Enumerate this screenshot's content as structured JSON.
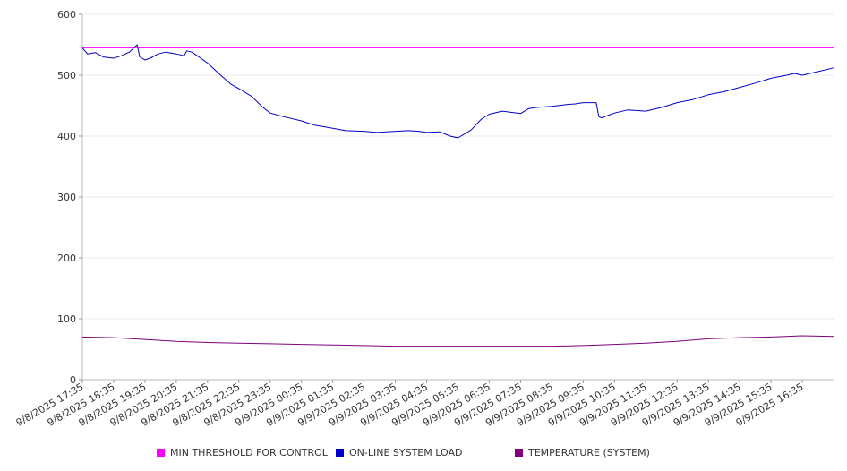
{
  "chart_data": {
    "type": "line",
    "ylim": [
      0,
      600
    ],
    "yticks": [
      "0",
      "100",
      "200",
      "300",
      "400",
      "500",
      "600"
    ],
    "x_tick_labels": [
      "9/8/2025 17:35",
      "9/8/2025 18:35",
      "9/8/2025 19:35",
      "9/8/2025 20:35",
      "9/8/2025 21:35",
      "9/8/2025 22:35",
      "9/8/2025 23:35",
      "9/9/2025 00:35",
      "9/9/2025 01:35",
      "9/9/2025 02:35",
      "9/9/2025 03:35",
      "9/9/2025 04:35",
      "9/9/2025 05:35",
      "9/9/2025 06:35",
      "9/9/2025 07:35",
      "9/9/2025 08:35",
      "9/9/2025 09:35",
      "9/9/2025 10:35",
      "9/9/2025 11:35",
      "9/9/2025 12:35",
      "9/9/2025 13:35",
      "9/9/2025 14:35",
      "9/9/2025 15:35",
      "9/9/2025 16:35"
    ],
    "x_range": [
      "9/8/2025 17:35",
      "9/9/2025 17:35"
    ],
    "grid": true,
    "legend_position": "bottom",
    "series": [
      {
        "name": "MIN THRESHOLD FOR CONTROL",
        "color": "#ff00ff",
        "x": [
          "9/8/2025 17:35",
          "9/9/2025 17:35"
        ],
        "values": [
          545,
          545
        ]
      },
      {
        "name": "ON-LINE SYSTEM LOAD",
        "color": "#0000cc",
        "x": [
          "9/8/2025 17:35",
          "9/8/2025 17:45",
          "9/8/2025 18:00",
          "9/8/2025 18:15",
          "9/8/2025 18:35",
          "9/8/2025 18:50",
          "9/8/2025 19:05",
          "9/8/2025 19:20",
          "9/8/2025 19:25",
          "9/8/2025 19:35",
          "9/8/2025 19:45",
          "9/8/2025 20:00",
          "9/8/2025 20:15",
          "9/8/2025 20:35",
          "9/8/2025 20:50",
          "9/8/2025 20:55",
          "9/8/2025 21:05",
          "9/8/2025 21:35",
          "9/8/2025 22:00",
          "9/8/2025 22:20",
          "9/8/2025 22:35",
          "9/8/2025 23:00",
          "9/8/2025 23:20",
          "9/8/2025 23:35",
          "9/9/2025 00:00",
          "9/9/2025 00:35",
          "9/9/2025 01:00",
          "9/9/2025 01:35",
          "9/9/2025 02:00",
          "9/9/2025 02:35",
          "9/9/2025 03:00",
          "9/9/2025 03:35",
          "9/9/2025 04:00",
          "9/9/2025 04:20",
          "9/9/2025 04:35",
          "9/9/2025 05:00",
          "9/9/2025 05:20",
          "9/9/2025 05:35",
          "9/9/2025 06:00",
          "9/9/2025 06:20",
          "9/9/2025 06:35",
          "9/9/2025 07:00",
          "9/9/2025 07:35",
          "9/9/2025 07:50",
          "9/9/2025 08:05",
          "9/9/2025 08:35",
          "9/9/2025 09:05",
          "9/9/2025 09:20",
          "9/9/2025 09:35",
          "9/9/2025 10:00",
          "9/9/2025 10:05",
          "9/9/2025 10:10",
          "9/9/2025 10:35",
          "9/9/2025 11:00",
          "9/9/2025 11:35",
          "9/9/2025 12:05",
          "9/9/2025 12:35",
          "9/9/2025 13:05",
          "9/9/2025 13:35",
          "9/9/2025 14:05",
          "9/9/2025 14:35",
          "9/9/2025 15:05",
          "9/9/2025 15:35",
          "9/9/2025 16:05",
          "9/9/2025 16:20",
          "9/9/2025 16:35",
          "9/9/2025 17:00",
          "9/9/2025 17:35"
        ],
        "values": [
          545,
          535,
          537,
          530,
          528,
          532,
          538,
          550,
          530,
          525,
          528,
          535,
          538,
          535,
          532,
          540,
          538,
          520,
          500,
          485,
          478,
          465,
          448,
          438,
          432,
          425,
          418,
          413,
          409,
          408,
          406,
          408,
          409,
          408,
          406,
          407,
          400,
          397,
          410,
          428,
          436,
          441,
          437,
          445,
          447,
          449,
          452,
          453,
          455,
          455,
          432,
          430,
          438,
          443,
          441,
          447,
          455,
          460,
          468,
          473,
          480,
          487,
          495,
          500,
          503,
          500,
          505,
          512
        ]
      },
      {
        "name": "TEMPERATURE (SYSTEM)",
        "color": "#800080",
        "x": [
          "9/8/2025 17:35",
          "9/8/2025 18:35",
          "9/8/2025 19:35",
          "9/8/2025 20:35",
          "9/8/2025 21:35",
          "9/8/2025 22:35",
          "9/8/2025 23:35",
          "9/9/2025 00:35",
          "9/9/2025 01:35",
          "9/9/2025 02:35",
          "9/9/2025 03:35",
          "9/9/2025 04:35",
          "9/9/2025 05:35",
          "9/9/2025 06:35",
          "9/9/2025 07:35",
          "9/9/2025 08:35",
          "9/9/2025 09:35",
          "9/9/2025 10:35",
          "9/9/2025 11:35",
          "9/9/2025 12:35",
          "9/9/2025 13:35",
          "9/9/2025 14:35",
          "9/9/2025 15:35",
          "9/9/2025 16:35",
          "9/9/2025 17:35"
        ],
        "values": [
          70,
          69,
          66,
          63,
          61,
          60,
          59,
          58,
          57,
          56,
          55,
          55,
          55,
          55,
          55,
          55,
          56,
          58,
          60,
          63,
          67,
          69,
          70,
          72,
          71
        ]
      }
    ]
  }
}
